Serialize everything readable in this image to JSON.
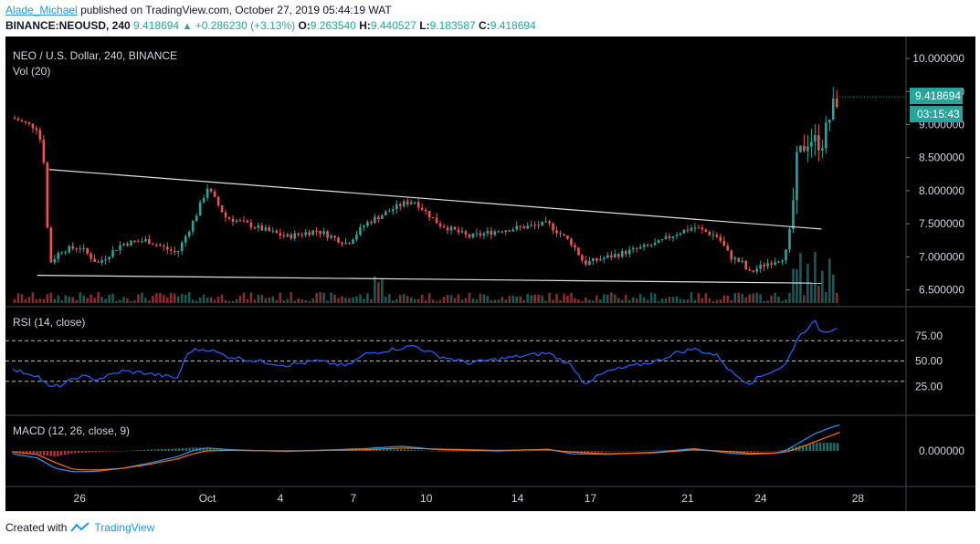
{
  "header": {
    "author": "Alade_Michael",
    "published_text": "published on TradingView.com, October 27, 2019 05:44:19 WAT",
    "symbol": "BINANCE:NEOUSD, 240",
    "last": "9.418694",
    "change": "+0.286230 (+3.13%)",
    "o_label": "O:",
    "o": "9.263540",
    "h_label": "H:",
    "h": "9.440527",
    "l_label": "L:",
    "l": "9.183587",
    "c_label": "C:",
    "c": "9.418694"
  },
  "footer": {
    "created_with": "Created with",
    "brand": "TradingView"
  },
  "colors": {
    "up": "#26a69a",
    "down": "#ef5350",
    "rsi": "#2962ff",
    "macd": "#2196f3",
    "signal": "#ff6d00",
    "trendline": "#e0e0e0"
  },
  "chart_data": [
    {
      "type": "candlestick",
      "title": "NEO / U.S. Dollar, 240, BINANCE",
      "volume_label": "Vol (20)",
      "price_labels": [
        "10.000000",
        "9.500000",
        "9.000000",
        "8.500000",
        "8.000000",
        "7.500000",
        "7.000000",
        "6.500000"
      ],
      "price_ticks": [
        10.0,
        9.5,
        9.0,
        8.5,
        8.0,
        7.5,
        7.0,
        6.5
      ],
      "ylim": [
        6.3,
        10.25
      ],
      "x_tick_labels": [
        "26",
        "Oct",
        "4",
        "7",
        "10",
        "14",
        "17",
        "21",
        "24",
        "28"
      ],
      "x_ticks": [
        11,
        32,
        44,
        56,
        68,
        83,
        95,
        111,
        123,
        139
      ],
      "xlim": [
        0,
        146
      ],
      "last_price_label": "9.418694",
      "countdown_label": "03:15:43",
      "last_price": 9.42,
      "path": [
        [
          0,
          9.1
        ],
        [
          4,
          8.95
        ],
        [
          5,
          8.6
        ],
        [
          6,
          6.9
        ],
        [
          8,
          7.1
        ],
        [
          11,
          7.15
        ],
        [
          14,
          6.9
        ],
        [
          18,
          7.2
        ],
        [
          22,
          7.25
        ],
        [
          27,
          7.05
        ],
        [
          30,
          7.6
        ],
        [
          32,
          8.05
        ],
        [
          35,
          7.6
        ],
        [
          40,
          7.45
        ],
        [
          45,
          7.3
        ],
        [
          50,
          7.4
        ],
        [
          55,
          7.2
        ],
        [
          58,
          7.5
        ],
        [
          61,
          7.65
        ],
        [
          64,
          7.8
        ],
        [
          66,
          7.85
        ],
        [
          70,
          7.5
        ],
        [
          75,
          7.3
        ],
        [
          80,
          7.4
        ],
        [
          84,
          7.45
        ],
        [
          88,
          7.5
        ],
        [
          92,
          7.2
        ],
        [
          94,
          6.9
        ],
        [
          98,
          7.0
        ],
        [
          102,
          7.1
        ],
        [
          106,
          7.2
        ],
        [
          109,
          7.35
        ],
        [
          112,
          7.45
        ],
        [
          116,
          7.3
        ],
        [
          118,
          7.0
        ],
        [
          120,
          6.9
        ],
        [
          121,
          6.75
        ],
        [
          124,
          6.9
        ],
        [
          127,
          7.0
        ],
        [
          128,
          7.5
        ],
        [
          129,
          8.5
        ],
        [
          131,
          8.8
        ],
        [
          133,
          8.7
        ],
        [
          135,
          9.3
        ],
        [
          136,
          9.42
        ]
      ],
      "trendlines": [
        {
          "name": "resistance",
          "points": [
            [
              6,
              8.32
            ],
            [
              133,
              7.42
            ]
          ]
        },
        {
          "name": "support",
          "points": [
            [
              4,
              6.72
            ],
            [
              133,
              6.6
            ]
          ]
        }
      ]
    },
    {
      "type": "line",
      "title": "RSI (14, close)",
      "tick_labels": [
        "75.00",
        "50.00",
        "25.00"
      ],
      "ticks": [
        75,
        50,
        25
      ],
      "dashed_levels": [
        70,
        50,
        30
      ],
      "ylim": [
        0,
        100
      ],
      "path": [
        [
          0,
          41
        ],
        [
          4,
          36
        ],
        [
          6,
          24
        ],
        [
          8,
          26
        ],
        [
          11,
          35
        ],
        [
          14,
          32
        ],
        [
          18,
          40
        ],
        [
          22,
          38
        ],
        [
          27,
          33
        ],
        [
          29,
          60
        ],
        [
          32,
          62
        ],
        [
          35,
          55
        ],
        [
          40,
          50
        ],
        [
          45,
          46
        ],
        [
          50,
          50
        ],
        [
          55,
          45
        ],
        [
          58,
          57
        ],
        [
          61,
          60
        ],
        [
          64,
          63
        ],
        [
          66,
          65
        ],
        [
          70,
          55
        ],
        [
          75,
          48
        ],
        [
          80,
          52
        ],
        [
          84,
          55
        ],
        [
          88,
          58
        ],
        [
          92,
          45
        ],
        [
          94,
          28
        ],
        [
          98,
          40
        ],
        [
          102,
          45
        ],
        [
          106,
          50
        ],
        [
          109,
          58
        ],
        [
          112,
          62
        ],
        [
          116,
          55
        ],
        [
          118,
          40
        ],
        [
          120,
          32
        ],
        [
          121,
          28
        ],
        [
          124,
          38
        ],
        [
          127,
          45
        ],
        [
          128,
          58
        ],
        [
          129,
          72
        ],
        [
          131,
          85
        ],
        [
          132,
          88
        ],
        [
          133,
          78
        ],
        [
          135,
          82
        ],
        [
          136,
          85
        ]
      ]
    },
    {
      "type": "line",
      "title": "MACD (12, 26, close, 9)",
      "tick_labels": [
        "0.000000"
      ],
      "ticks": [
        0
      ],
      "ylim": [
        -0.55,
        0.55
      ],
      "series": [
        {
          "name": "MACD",
          "path": [
            [
              0,
              -0.05
            ],
            [
              4,
              -0.12
            ],
            [
              7,
              -0.3
            ],
            [
              10,
              -0.36
            ],
            [
              14,
              -0.35
            ],
            [
              18,
              -0.3
            ],
            [
              22,
              -0.22
            ],
            [
              27,
              -0.1
            ],
            [
              30,
              0.02
            ],
            [
              32,
              0.05
            ],
            [
              36,
              0.02
            ],
            [
              45,
              -0.01
            ],
            [
              58,
              0.04
            ],
            [
              64,
              0.08
            ],
            [
              70,
              0.02
            ],
            [
              80,
              0.0
            ],
            [
              88,
              0.03
            ],
            [
              92,
              -0.05
            ],
            [
              98,
              -0.06
            ],
            [
              106,
              -0.02
            ],
            [
              112,
              0.04
            ],
            [
              118,
              -0.04
            ],
            [
              121,
              -0.06
            ],
            [
              125,
              -0.04
            ],
            [
              127,
              0.0
            ],
            [
              129,
              0.12
            ],
            [
              132,
              0.3
            ],
            [
              135,
              0.42
            ],
            [
              136,
              0.45
            ]
          ]
        },
        {
          "name": "Signal",
          "path": [
            [
              0,
              -0.02
            ],
            [
              4,
              -0.06
            ],
            [
              7,
              -0.2
            ],
            [
              10,
              -0.32
            ],
            [
              14,
              -0.33
            ],
            [
              18,
              -0.3
            ],
            [
              22,
              -0.24
            ],
            [
              27,
              -0.14
            ],
            [
              30,
              -0.04
            ],
            [
              32,
              0.0
            ],
            [
              36,
              0.01
            ],
            [
              45,
              0.0
            ],
            [
              58,
              0.02
            ],
            [
              64,
              0.05
            ],
            [
              70,
              0.03
            ],
            [
              80,
              0.01
            ],
            [
              88,
              0.02
            ],
            [
              92,
              -0.02
            ],
            [
              98,
              -0.05
            ],
            [
              106,
              -0.03
            ],
            [
              112,
              0.02
            ],
            [
              118,
              -0.01
            ],
            [
              121,
              -0.04
            ],
            [
              125,
              -0.04
            ],
            [
              127,
              -0.02
            ],
            [
              129,
              0.04
            ],
            [
              132,
              0.16
            ],
            [
              135,
              0.28
            ],
            [
              136,
              0.32
            ]
          ]
        }
      ]
    }
  ]
}
